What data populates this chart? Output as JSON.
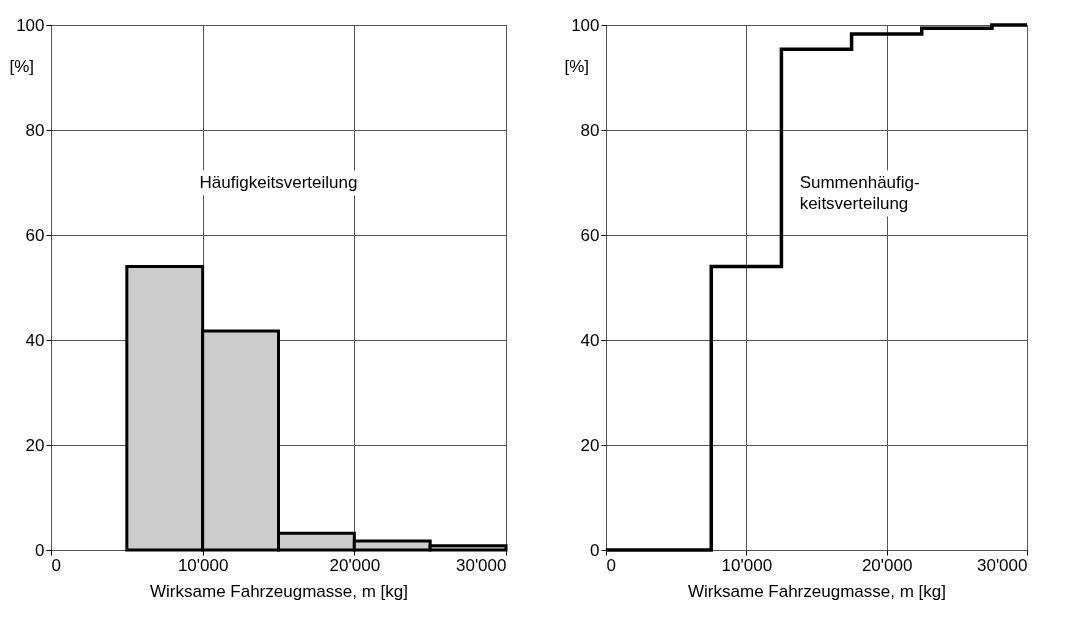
{
  "chart_data": [
    {
      "type": "histogram",
      "bins": [
        5000,
        10000,
        15000,
        20000,
        25000,
        30000
      ],
      "values": [
        54,
        41.7,
        3.2,
        1.7,
        0.8
      ],
      "color": "#cccccc",
      "xlabel": "Wirksame Fahrzeugmasse, m [kg]",
      "ylabel": "[%]",
      "xlim": [
        0,
        30000
      ],
      "xticks": [
        0,
        {
          "value": 10000,
          "label": "10'000"
        },
        {
          "value": 20000,
          "label": "20'000"
        },
        {
          "value": 30000,
          "label": "30'000"
        }
      ],
      "ylim": [
        0,
        100
      ],
      "yticks": [
        0,
        20,
        40,
        60,
        80,
        100
      ],
      "grid": true,
      "annotations": [
        "Häufigkeitsverteilung"
      ]
    },
    {
      "type": "step",
      "x": [
        0,
        7500,
        12500,
        17500,
        22500,
        27500,
        30000
      ],
      "values": [
        0,
        54,
        95.4,
        98.3,
        99.4,
        100,
        100
      ],
      "color": "#000000",
      "xlabel": "Wirksame Fahrzeugmasse, m [kg]",
      "ylabel": "[%]",
      "xlim": [
        0,
        30000
      ],
      "xticks": [
        0,
        {
          "value": 10000,
          "label": "10'000"
        },
        {
          "value": 20000,
          "label": "20'000"
        },
        {
          "value": 30000,
          "label": "30'000"
        }
      ],
      "ylim": [
        0,
        100
      ],
      "yticks": [
        0,
        20,
        40,
        60,
        80,
        100
      ],
      "grid": true,
      "annotations": [
        "Summenhäufig-\nkeitsverteilung"
      ]
    }
  ]
}
